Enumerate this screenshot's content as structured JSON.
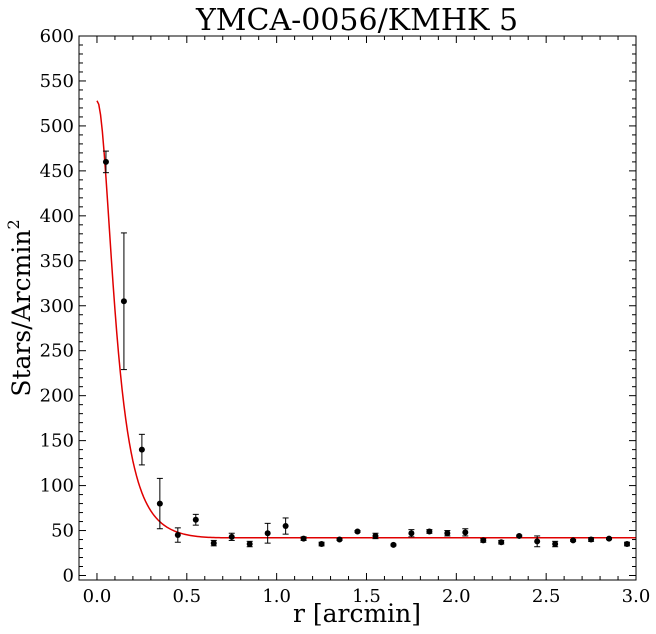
{
  "chart_data": {
    "type": "scatter",
    "title": "YMCA-0056/KMHK 5",
    "xlabel": "r [arcmin]",
    "ylabel_base": "Stars/Arcmin",
    "ylabel_sup": "2",
    "xlim": [
      -0.1,
      3.0
    ],
    "ylim": [
      -5,
      600
    ],
    "xticks": [
      0.0,
      0.5,
      1.0,
      1.5,
      2.0,
      2.5,
      3.0
    ],
    "xtick_labels": [
      "0.0",
      "0.5",
      "1.0",
      "1.5",
      "2.0",
      "2.5",
      "3.0"
    ],
    "yticks": [
      0,
      50,
      100,
      150,
      200,
      250,
      300,
      350,
      400,
      450,
      500,
      550,
      600
    ],
    "ytick_labels": [
      "0",
      "50",
      "100",
      "150",
      "200",
      "250",
      "300",
      "350",
      "400",
      "450",
      "500",
      "550",
      "600"
    ],
    "points": [
      {
        "x": 0.05,
        "y": 460,
        "err": 12
      },
      {
        "x": 0.15,
        "y": 305,
        "err": 76
      },
      {
        "x": 0.25,
        "y": 140,
        "err": 17
      },
      {
        "x": 0.35,
        "y": 80,
        "err": 28
      },
      {
        "x": 0.45,
        "y": 45,
        "err": 8
      },
      {
        "x": 0.55,
        "y": 62,
        "err": 6
      },
      {
        "x": 0.65,
        "y": 36,
        "err": 3
      },
      {
        "x": 0.75,
        "y": 43,
        "err": 4
      },
      {
        "x": 0.85,
        "y": 35,
        "err": 3
      },
      {
        "x": 0.95,
        "y": 47,
        "err": 11
      },
      {
        "x": 1.05,
        "y": 55,
        "err": 9
      },
      {
        "x": 1.15,
        "y": 41,
        "err": 2
      },
      {
        "x": 1.25,
        "y": 35,
        "err": 2
      },
      {
        "x": 1.35,
        "y": 40,
        "err": 1
      },
      {
        "x": 1.45,
        "y": 49,
        "err": 1
      },
      {
        "x": 1.55,
        "y": 44,
        "err": 3
      },
      {
        "x": 1.65,
        "y": 34,
        "err": 1
      },
      {
        "x": 1.75,
        "y": 47,
        "err": 4
      },
      {
        "x": 1.85,
        "y": 49,
        "err": 2
      },
      {
        "x": 1.95,
        "y": 47,
        "err": 3
      },
      {
        "x": 2.05,
        "y": 48,
        "err": 4
      },
      {
        "x": 2.15,
        "y": 39,
        "err": 2
      },
      {
        "x": 2.25,
        "y": 37,
        "err": 2
      },
      {
        "x": 2.35,
        "y": 44,
        "err": 1
      },
      {
        "x": 2.45,
        "y": 38,
        "err": 6
      },
      {
        "x": 2.55,
        "y": 35,
        "err": 3
      },
      {
        "x": 2.65,
        "y": 39,
        "err": 1
      },
      {
        "x": 2.75,
        "y": 40,
        "err": 2
      },
      {
        "x": 2.85,
        "y": 41,
        "err": 1
      },
      {
        "x": 2.95,
        "y": 35,
        "err": 2
      }
    ],
    "fit_curve": {
      "model": "King profile",
      "background": 42,
      "central_density": 486,
      "core_radius": 0.12,
      "tidal_radius": 0.72,
      "x_range": [
        0.0,
        3.0
      ],
      "color": "#e00000"
    },
    "marker_color": "#000000",
    "grid": false,
    "legend": "none"
  }
}
